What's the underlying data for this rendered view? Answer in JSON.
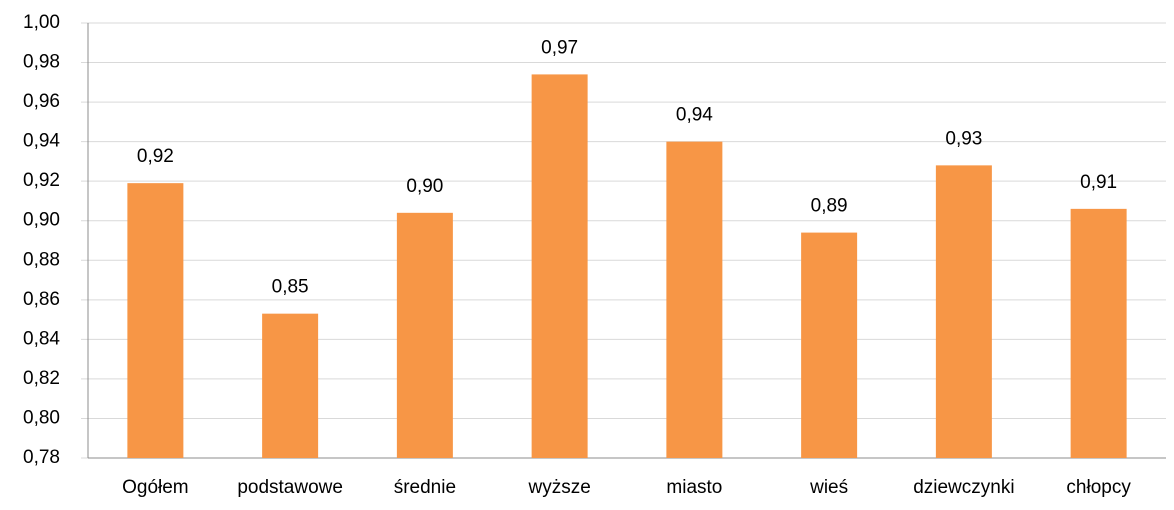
{
  "chart_data": {
    "type": "bar",
    "categories": [
      "Ogółem",
      "podstawowe",
      "średnie",
      "wyższe",
      "miasto",
      "wieś",
      "dziewczynki",
      "chłopcy"
    ],
    "values": [
      0.919,
      0.853,
      0.904,
      0.974,
      0.94,
      0.894,
      0.928,
      0.906
    ],
    "value_labels": [
      "0,92",
      "0,85",
      "0,90",
      "0,97",
      "0,94",
      "0,89",
      "0,93",
      "0,91"
    ],
    "color": "#f79646",
    "ylim": [
      0.78,
      1.0
    ],
    "yticks": [
      {
        "value": 0.78,
        "label": "0,78"
      },
      {
        "value": 0.8,
        "label": "0,80"
      },
      {
        "value": 0.82,
        "label": "0,82"
      },
      {
        "value": 0.84,
        "label": "0,84"
      },
      {
        "value": 0.86,
        "label": "0,86"
      },
      {
        "value": 0.88,
        "label": "0,88"
      },
      {
        "value": 0.9,
        "label": "0,90"
      },
      {
        "value": 0.92,
        "label": "0,92"
      },
      {
        "value": 0.94,
        "label": "0,94"
      },
      {
        "value": 0.96,
        "label": "0,96"
      },
      {
        "value": 0.98,
        "label": "0,98"
      },
      {
        "value": 1.0,
        "label": "1,00"
      }
    ],
    "grid": true
  }
}
